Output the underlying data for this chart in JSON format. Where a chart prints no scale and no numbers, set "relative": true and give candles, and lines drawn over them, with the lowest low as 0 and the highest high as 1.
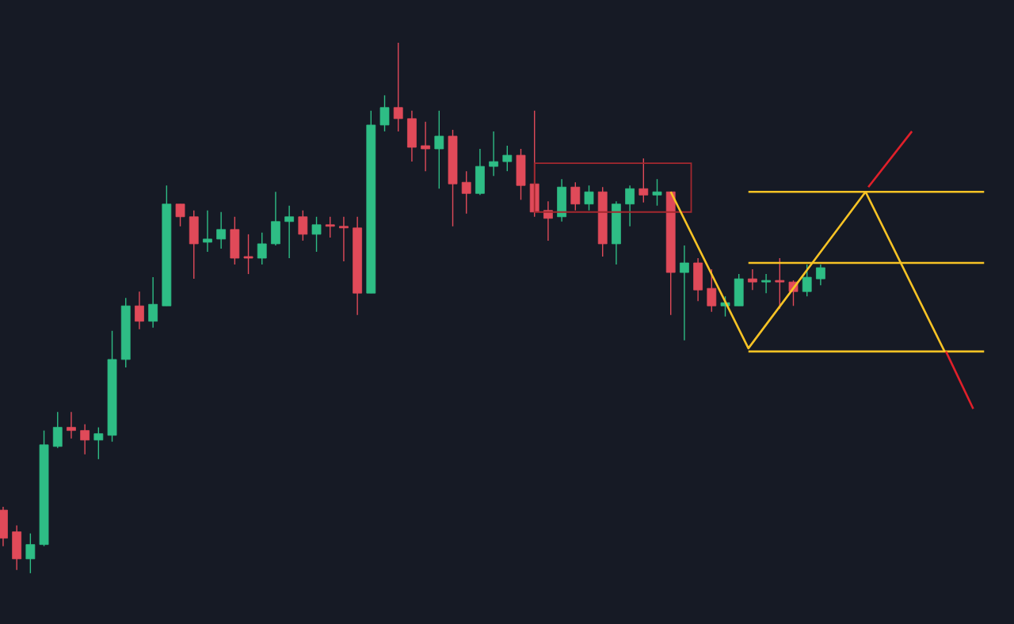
{
  "chart_data": {
    "type": "candlestick",
    "relative": true,
    "categories": [
      null,
      null,
      null,
      null,
      null,
      null,
      null,
      null,
      null,
      null,
      null,
      null,
      null,
      null,
      null,
      null,
      null,
      null,
      null,
      null,
      null,
      null,
      null,
      null,
      null,
      null,
      null,
      null,
      null,
      null,
      null,
      null,
      null,
      null,
      null,
      null,
      null,
      null,
      null,
      null,
      null,
      null,
      null,
      null,
      null,
      null,
      null,
      null,
      null,
      null,
      null,
      null,
      null,
      null,
      null,
      null,
      null,
      null,
      null,
      null,
      null
    ],
    "ref_lines": [
      {
        "axis": "y",
        "value": 0.719,
        "color": "#f7c325"
      },
      {
        "axis": "y",
        "value": 0.585,
        "color": "#f7c325"
      },
      {
        "axis": "y",
        "value": 0.418,
        "color": "#f7c325"
      }
    ],
    "ohlc": [
      [
        0.119,
        0.125,
        0.051,
        0.066
      ],
      [
        0.078,
        0.09,
        0.006,
        0.027
      ],
      [
        0.027,
        0.075,
        0,
        0.054
      ],
      [
        0.054,
        0.269,
        0.051,
        0.242
      ],
      [
        0.239,
        0.304,
        0.236,
        0.275
      ],
      [
        0.275,
        0.304,
        0.254,
        0.269
      ],
      [
        0.269,
        0.281,
        0.224,
        0.251
      ],
      [
        0.251,
        0.275,
        0.215,
        0.263
      ],
      [
        0.26,
        0.457,
        0.248,
        0.403
      ],
      [
        0.403,
        0.519,
        0.388,
        0.504
      ],
      [
        0.504,
        0.531,
        0.46,
        0.475
      ],
      [
        0.475,
        0.558,
        0.463,
        0.507
      ],
      [
        0.504,
        0.731,
        0.504,
        0.696
      ],
      [
        0.696,
        0.696,
        0.654,
        0.672
      ],
      [
        0.672,
        0.684,
        0.555,
        0.621
      ],
      [
        0.624,
        0.684,
        0.606,
        0.63
      ],
      [
        0.63,
        0.681,
        0.612,
        0.648
      ],
      [
        0.648,
        0.672,
        0.582,
        0.594
      ],
      [
        0.597,
        0.639,
        0.564,
        0.594
      ],
      [
        0.594,
        0.642,
        0.582,
        0.621
      ],
      [
        0.621,
        0.719,
        0.618,
        0.663
      ],
      [
        0.663,
        0.693,
        0.594,
        0.672
      ],
      [
        0.672,
        0.684,
        0.627,
        0.639
      ],
      [
        0.639,
        0.672,
        0.606,
        0.657
      ],
      [
        0.657,
        0.672,
        0.633,
        0.654
      ],
      [
        0.654,
        0.672,
        0.588,
        0.651
      ],
      [
        0.651,
        0.672,
        0.487,
        0.528
      ],
      [
        0.528,
        0.872,
        0.528,
        0.845
      ],
      [
        0.845,
        0.901,
        0.833,
        0.878
      ],
      [
        0.878,
        1,
        0.833,
        0.857
      ],
      [
        0.857,
        0.872,
        0.776,
        0.803
      ],
      [
        0.806,
        0.851,
        0.758,
        0.8
      ],
      [
        0.8,
        0.872,
        0.725,
        0.824
      ],
      [
        0.824,
        0.836,
        0.654,
        0.734
      ],
      [
        0.737,
        0.758,
        0.678,
        0.716
      ],
      [
        0.716,
        0.8,
        0.713,
        0.767
      ],
      [
        0.767,
        0.833,
        0.749,
        0.776
      ],
      [
        0.776,
        0.806,
        0.758,
        0.788
      ],
      [
        0.788,
        0.8,
        0.704,
        0.731
      ],
      [
        0.734,
        0.872,
        0.672,
        0.681
      ],
      [
        0.684,
        0.701,
        0.627,
        0.669
      ],
      [
        0.672,
        0.743,
        0.663,
        0.728
      ],
      [
        0.728,
        0.737,
        0.684,
        0.696
      ],
      [
        0.696,
        0.731,
        0.684,
        0.719
      ],
      [
        0.719,
        0.728,
        0.597,
        0.621
      ],
      [
        0.621,
        0.701,
        0.582,
        0.696
      ],
      [
        0.696,
        0.731,
        0.654,
        0.725
      ],
      [
        0.725,
        0.782,
        0.699,
        0.713
      ],
      [
        0.713,
        0.743,
        0.693,
        0.719
      ],
      [
        0.719,
        0.719,
        0.487,
        0.567
      ],
      [
        0.567,
        0.618,
        0.439,
        0.585
      ],
      [
        0.585,
        0.594,
        0.513,
        0.534
      ],
      [
        0.537,
        0.573,
        0.493,
        0.504
      ],
      [
        0.504,
        0.522,
        0.484,
        0.51
      ],
      [
        0.504,
        0.564,
        0.504,
        0.555
      ],
      [
        0.555,
        0.573,
        0.534,
        0.549
      ],
      [
        0.549,
        0.564,
        0.528,
        0.552
      ],
      [
        0.552,
        0.594,
        0.499,
        0.549
      ],
      [
        0.549,
        0.552,
        0.504,
        0.531
      ],
      [
        0.531,
        0.582,
        0.522,
        0.558
      ],
      [
        0.555,
        0.582,
        0.543,
        0.576
      ]
    ],
    "colors": [
      "#e04a59",
      "#e04a59",
      "#2ebd85",
      "#2ebd85",
      "#2ebd85",
      "#e04a59",
      "#e04a59",
      "#2ebd85",
      "#2ebd85",
      "#2ebd85",
      "#e04a59",
      "#2ebd85",
      "#2ebd85",
      "#e04a59",
      "#e04a59",
      "#2ebd85",
      "#2ebd85",
      "#e04a59",
      "#e04a59",
      "#2ebd85",
      "#2ebd85",
      "#2ebd85",
      "#e04a59",
      "#2ebd85",
      "#e04a59",
      "#e04a59",
      "#e04a59",
      "#2ebd85",
      "#2ebd85",
      "#e04a59",
      "#e04a59",
      "#e04a59",
      "#2ebd85",
      "#e04a59",
      "#e04a59",
      "#2ebd85",
      "#2ebd85",
      "#2ebd85",
      "#e04a59",
      "#e04a59",
      "#e04a59",
      "#2ebd85",
      "#e04a59",
      "#2ebd85",
      "#e04a59",
      "#2ebd85",
      "#2ebd85",
      "#e04a59",
      "#2ebd85",
      "#e04a59",
      "#2ebd85",
      "#e04a59",
      "#e04a59",
      "#2ebd85",
      "#2ebd85",
      "#e04a59",
      "#2ebd85",
      "#e04a59",
      "#e04a59",
      "#2ebd85",
      "#2ebd85"
    ]
  }
}
